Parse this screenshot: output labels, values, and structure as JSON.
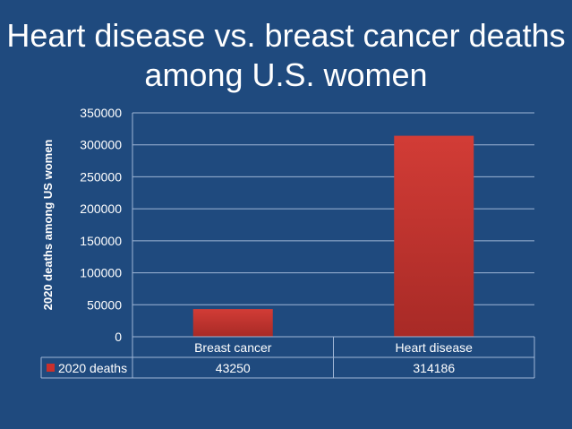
{
  "title_line1": "Heart disease vs. breast cancer deaths",
  "title_line2": "among U.S. women",
  "chart_data": {
    "type": "bar",
    "title": "Heart disease vs. breast cancer deaths among U.S. women",
    "categories": [
      "Breast cancer",
      "Heart disease"
    ],
    "series": [
      {
        "name": "2020 deaths",
        "values": [
          43250,
          314186
        ],
        "color": "#c9302c"
      }
    ],
    "ylabel": "2020 deaths among US women",
    "xlabel": "",
    "ylim": [
      0,
      350000
    ],
    "yticks": [
      "0",
      "50000",
      "100000",
      "150000",
      "200000",
      "250000",
      "300000",
      "350000"
    ],
    "table_values": [
      "43250",
      "314186"
    ],
    "grid": true,
    "legend": "data-table"
  }
}
